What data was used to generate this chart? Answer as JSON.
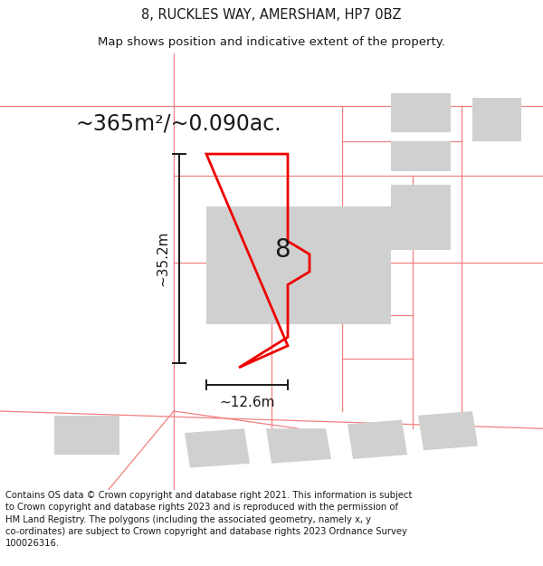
{
  "title": "8, RUCKLES WAY, AMERSHAM, HP7 0BZ",
  "subtitle": "Map shows position and indicative extent of the property.",
  "area_text": "~365m²/~0.090ac.",
  "dim_height": "~35.2m",
  "dim_width": "~12.6m",
  "label": "8",
  "footer": "Contains OS data © Crown copyright and database right 2021. This information is subject to Crown copyright and database rights 2023 and is reproduced with the permission of HM Land Registry. The polygons (including the associated geometry, namely x, y co-ordinates) are subject to Crown copyright and database rights 2023 Ordnance Survey 100026316.",
  "bg_color": "#ffffff",
  "pink": "#f28080",
  "red": "#ee0000",
  "gray": "#d0d0d0",
  "black": "#1a1a1a",
  "title_fs": 10.5,
  "subtitle_fs": 9.5,
  "area_fs": 17,
  "label_fs": 20,
  "dim_fs": 11,
  "footer_fs": 7.2,
  "lw_pink": 0.9,
  "lw_red": 2.0,
  "lw_dim": 1.4
}
